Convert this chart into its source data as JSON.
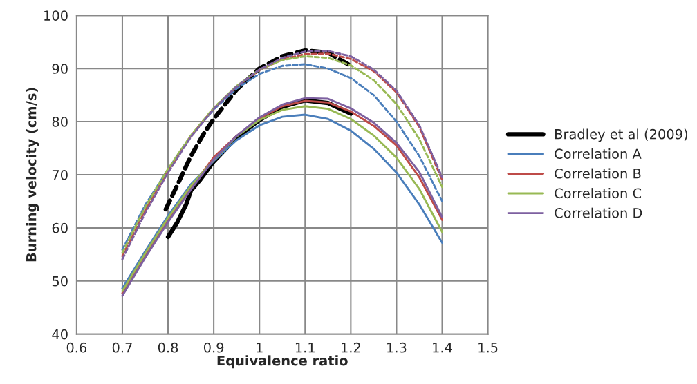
{
  "chart_data": {
    "type": "line",
    "xlabel": "Equivalence ratio",
    "ylabel": "Burning velocity (cm/s)",
    "xlim": [
      0.6,
      1.5
    ],
    "xticks": [
      {
        "value": 0.6,
        "label": "0.6"
      },
      {
        "value": 0.7,
        "label": "0.7"
      },
      {
        "value": 0.8,
        "label": "0.8"
      },
      {
        "value": 0.9,
        "label": "0.9"
      },
      {
        "value": 1.0,
        "label": "1"
      },
      {
        "value": 1.1,
        "label": "1.1"
      },
      {
        "value": 1.2,
        "label": "1.2"
      },
      {
        "value": 1.3,
        "label": "1.3"
      },
      {
        "value": 1.4,
        "label": "1.4"
      },
      {
        "value": 1.5,
        "label": "1.5"
      }
    ],
    "ylim": [
      40,
      100
    ],
    "yticks": [
      40,
      50,
      60,
      70,
      80,
      90,
      100
    ],
    "grid": true,
    "legend": "right",
    "marker": "none",
    "x": [
      0.7,
      0.75,
      0.8,
      0.85,
      0.9,
      0.95,
      1.0,
      1.05,
      1.1,
      1.15,
      1.2,
      1.25,
      1.3,
      1.35,
      1.4
    ],
    "series": [
      {
        "name": "Bradley et al (2009)",
        "color": "#000000",
        "line_style": "solid",
        "x": [
          0.8,
          0.82,
          0.84,
          0.85,
          0.87,
          0.9,
          0.95,
          1.0,
          1.05,
          1.1,
          1.15,
          1.2
        ],
        "values": [
          58.3,
          61,
          64.5,
          67,
          69,
          72.5,
          77,
          80.3,
          82.8,
          84,
          83.5,
          81.5
        ]
      },
      {
        "color": "#000000",
        "line_style": "dashed",
        "x": [
          0.795,
          0.82,
          0.85,
          0.88,
          0.9,
          0.95,
          1.0,
          1.05,
          1.1,
          1.15,
          1.2
        ],
        "values": [
          63.5,
          68,
          73.5,
          78,
          80.5,
          86,
          90,
          92.3,
          93.4,
          93,
          90.5
        ]
      },
      {
        "name": "Correlation A",
        "color": "#4a7ebb",
        "line_style": "solid",
        "values": [
          48.6,
          55.6,
          62.3,
          68.2,
          72.6,
          76.5,
          79.3,
          80.9,
          81.3,
          80.5,
          78.3,
          74.9,
          70.4,
          64.4,
          57.2
        ]
      },
      {
        "name": "Correlation B",
        "color": "#be4b48",
        "line_style": "solid",
        "values": [
          47.7,
          54.8,
          61.5,
          67.5,
          73.3,
          77.3,
          80.6,
          82.9,
          83.9,
          83.6,
          81.9,
          79.2,
          75.5,
          69.5,
          61.5
        ]
      },
      {
        "name": "Correlation C",
        "color": "#98b954",
        "line_style": "solid",
        "values": [
          48.1,
          55.2,
          61.9,
          67.9,
          72.8,
          77.2,
          80.3,
          82.2,
          82.9,
          82.4,
          80.5,
          77.4,
          73.2,
          67.3,
          59.2
        ]
      },
      {
        "name": "Correlation D",
        "color": "#7d60a0",
        "line_style": "solid",
        "values": [
          47.2,
          54.4,
          61.1,
          67.2,
          72.9,
          77.3,
          80.8,
          83.2,
          84.4,
          84.3,
          82.5,
          79.8,
          76,
          70.5,
          62
        ]
      },
      {
        "color": "#4a7ebb",
        "line_style": "dashed",
        "values": [
          55.9,
          64.3,
          71,
          77.3,
          82.3,
          86.2,
          89,
          90.5,
          90.8,
          90,
          88.2,
          85,
          80,
          73.5,
          65
        ]
      },
      {
        "color": "#be4b48",
        "line_style": "dashed",
        "values": [
          54.7,
          63.3,
          70.7,
          77.3,
          82.5,
          86.6,
          89.7,
          91.7,
          92.7,
          92.8,
          91.8,
          89.5,
          85.5,
          79,
          69
        ]
      },
      {
        "color": "#98b954",
        "line_style": "dashed",
        "values": [
          55.3,
          63.9,
          71.1,
          77.4,
          82.6,
          86.7,
          89.8,
          91.6,
          92.3,
          92,
          90.6,
          87.8,
          83.3,
          76.7,
          67.7
        ]
      },
      {
        "color": "#7d60a0",
        "line_style": "dashed",
        "values": [
          54.1,
          62.8,
          70.4,
          77.1,
          82.4,
          86.6,
          89.8,
          92,
          93.2,
          93.3,
          92.3,
          89.8,
          85.8,
          79.3,
          69.5
        ]
      }
    ]
  }
}
